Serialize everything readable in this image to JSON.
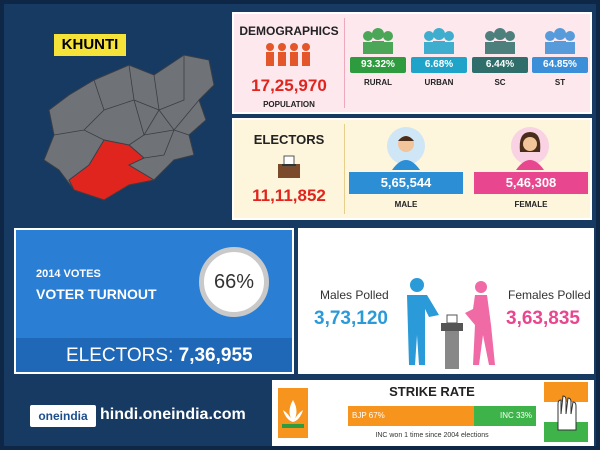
{
  "district": "KHUNTI",
  "demographics": {
    "title": "DEMOGRAPHICS",
    "population": "17,25,970",
    "population_label": "POPULATION",
    "groups": [
      {
        "value": "93.32%",
        "label": "RURAL",
        "color": "#2e9b3e"
      },
      {
        "value": "6.68%",
        "label": "URBAN",
        "color": "#1fa3c8"
      },
      {
        "value": "6.44%",
        "label": "SC",
        "color": "#2f6e6a"
      },
      {
        "value": "64.85%",
        "label": "ST",
        "color": "#3b8ed8"
      }
    ]
  },
  "electors": {
    "title": "ELECTORS",
    "total": "11,11,852",
    "male": {
      "value": "5,65,544",
      "label": "MALE"
    },
    "female": {
      "value": "5,46,308",
      "label": "FEMALE"
    }
  },
  "turnout": {
    "year_label": "2014 VOTES",
    "title": "VOTER TURNOUT",
    "percent": "66%",
    "electors_label": "ELECTORS:",
    "electors_value": "7,36,955"
  },
  "polled": {
    "males_label": "Males Polled",
    "males": "3,73,120",
    "females_label": "Females Polled",
    "females": "3,63,835"
  },
  "footer": {
    "logo": "oneindia",
    "site": "hindi.oneindia.com"
  },
  "strike_rate": {
    "title": "STRIKE RATE",
    "bars": [
      {
        "label": "BJP 67%",
        "value": 67,
        "color": "#f7941d"
      },
      {
        "label": "INC 33%",
        "value": 33,
        "color": "#3db34a"
      }
    ],
    "note": "INC won 1 time since 2004 elections"
  }
}
